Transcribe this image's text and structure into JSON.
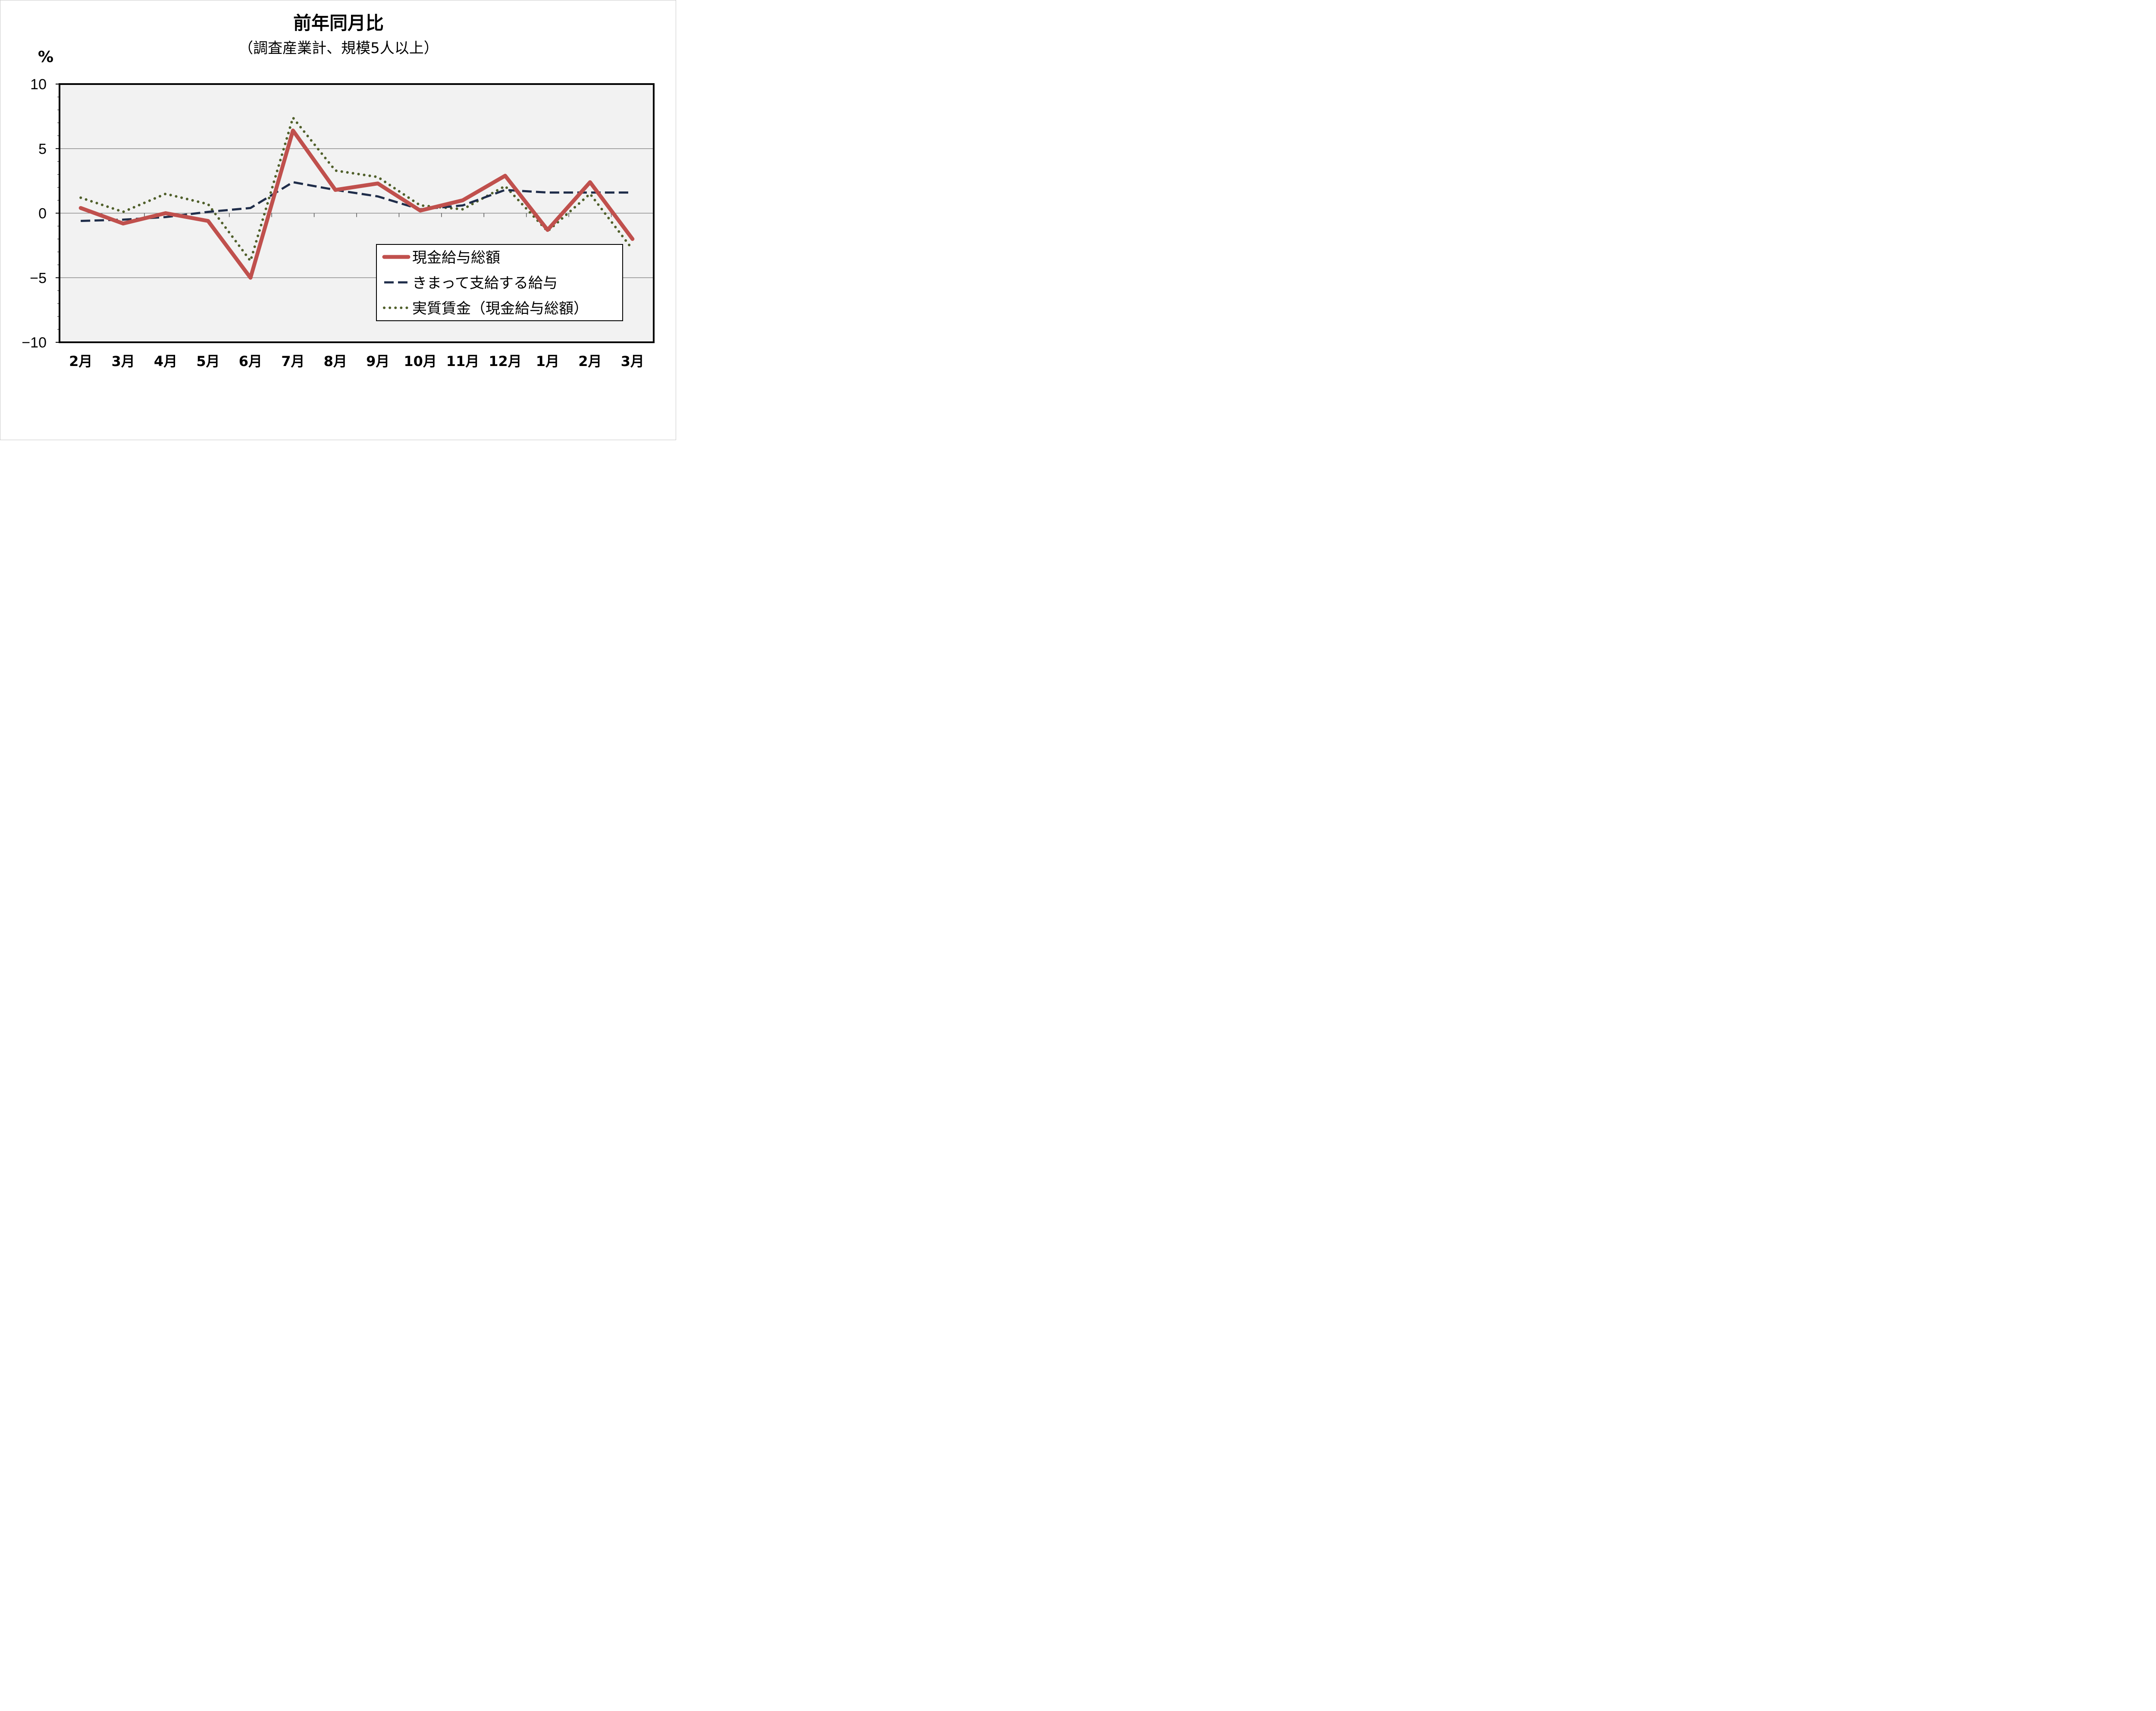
{
  "chart_data": {
    "type": "line",
    "title": "前年同月比",
    "subtitle": "（調査産業計、規模5人以上）",
    "ylabel": "%",
    "xlabel": "",
    "ylim": [
      -10,
      10
    ],
    "yticks": [
      "10",
      "5",
      "0",
      "−5",
      "−10"
    ],
    "ytick_values": [
      10,
      5,
      0,
      -5,
      -10
    ],
    "grid": true,
    "legend_position": "lower-right",
    "categories": [
      "2月",
      "3月",
      "4月",
      "5月",
      "6月",
      "7月",
      "8月",
      "9月",
      "10月",
      "11月",
      "12月",
      "1月",
      "2月",
      "3月"
    ],
    "series": [
      {
        "name": "現金給与総額",
        "style": "solid",
        "color": "#c0504d",
        "values": [
          0.4,
          -0.8,
          0.0,
          -0.6,
          -5.0,
          6.4,
          1.8,
          2.3,
          0.2,
          1.0,
          2.9,
          -1.3,
          2.4,
          -2.0
        ]
      },
      {
        "name": "きまって支給する給与",
        "style": "dashed",
        "color": "#1f2d4a",
        "values": [
          -0.6,
          -0.5,
          -0.3,
          0.1,
          0.4,
          2.4,
          1.8,
          1.3,
          0.3,
          0.6,
          1.8,
          1.6,
          1.6,
          1.6
        ]
      },
      {
        "name": "実質賃金（現金給与総額）",
        "style": "dotted",
        "color": "#4f5f2a",
        "values": [
          1.2,
          0.1,
          1.5,
          0.7,
          -3.7,
          7.4,
          3.3,
          2.8,
          0.6,
          0.3,
          2.1,
          -1.4,
          1.5,
          -2.8
        ]
      }
    ]
  },
  "colors": {
    "plot_background": "#f2f2f2",
    "gridline": "#8c8c8c",
    "axis": "#000000"
  }
}
